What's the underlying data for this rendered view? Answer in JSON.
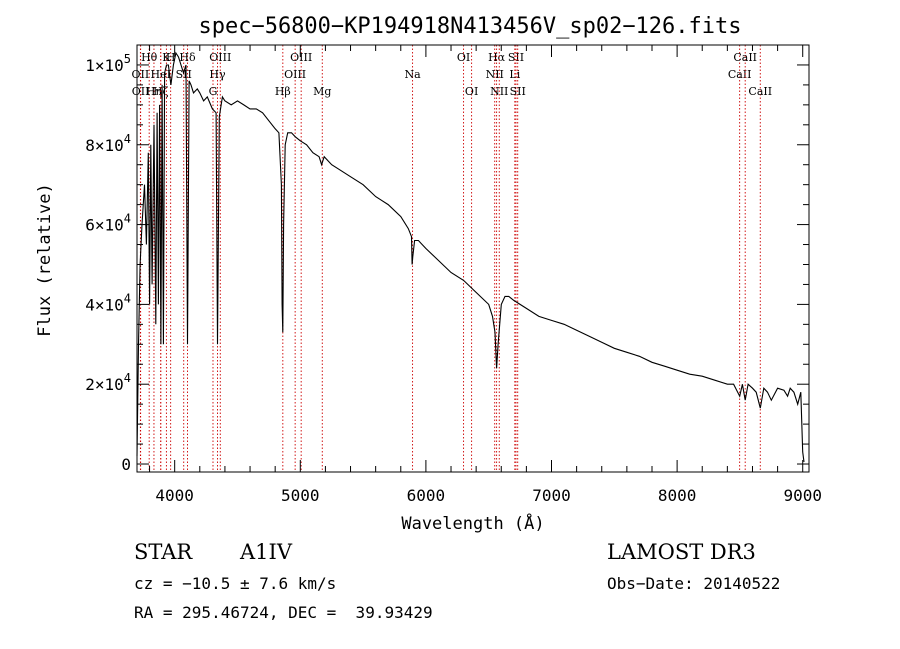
{
  "chart_data": {
    "type": "line",
    "title": "spec−56800−KP194918N413456V_sp02−126.fits",
    "xlabel": "Wavelength (Å)",
    "ylabel": "Flux (relative)",
    "xlim": [
      3700,
      9050
    ],
    "ylim": [
      -2000,
      105000
    ],
    "x_ticks": [
      {
        "value": 4000,
        "label": "4000"
      },
      {
        "value": 5000,
        "label": "5000"
      },
      {
        "value": 6000,
        "label": "6000"
      },
      {
        "value": 7000,
        "label": "7000"
      },
      {
        "value": 8000,
        "label": "8000"
      },
      {
        "value": 9000,
        "label": "9000"
      }
    ],
    "y_ticks": [
      {
        "value": 0,
        "mant": "0",
        "exp": ""
      },
      {
        "value": 20000,
        "mant": "2×10",
        "exp": "4"
      },
      {
        "value": 40000,
        "mant": "4×10",
        "exp": "4"
      },
      {
        "value": 60000,
        "mant": "6×10",
        "exp": "4"
      },
      {
        "value": 80000,
        "mant": "8×10",
        "exp": "4"
      },
      {
        "value": 100000,
        "mant": "1×10",
        "exp": "5"
      }
    ],
    "series": [
      {
        "name": "spectrum",
        "x": [
          3700,
          3712,
          3725,
          3740,
          3760,
          3775,
          3790,
          3800,
          3810,
          3820,
          3835,
          3850,
          3860,
          3870,
          3880,
          3890,
          3900,
          3910,
          3920,
          3935,
          3950,
          3970,
          3990,
          4010,
          4030,
          4050,
          4070,
          4090,
          4102,
          4115,
          4130,
          4150,
          4180,
          4200,
          4230,
          4260,
          4300,
          4330,
          4341,
          4355,
          4380,
          4400,
          4450,
          4500,
          4550,
          4600,
          4650,
          4700,
          4750,
          4800,
          4830,
          4850,
          4855,
          4861,
          4867,
          4880,
          4900,
          4930,
          4960,
          5000,
          5050,
          5100,
          5150,
          5170,
          5180,
          5190,
          5250,
          5300,
          5400,
          5500,
          5600,
          5700,
          5800,
          5860,
          5885,
          5890,
          5896,
          5910,
          5940,
          6000,
          6100,
          6200,
          6300,
          6400,
          6500,
          6530,
          6550,
          6563,
          6575,
          6600,
          6630,
          6660,
          6700,
          6800,
          6900,
          7000,
          7100,
          7200,
          7300,
          7400,
          7500,
          7600,
          7700,
          7800,
          7900,
          8000,
          8100,
          8200,
          8300,
          8400,
          8450,
          8498,
          8520,
          8542,
          8565,
          8600,
          8630,
          8662,
          8690,
          8720,
          8750,
          8800,
          8850,
          8880,
          8900,
          8930,
          8960,
          8985,
          9000,
          9010
        ],
        "y": [
          2000,
          30000,
          50000,
          60000,
          70000,
          55000,
          78000,
          40000,
          80000,
          45000,
          85000,
          35000,
          88000,
          40000,
          90000,
          30000,
          95000,
          30000,
          98000,
          100000,
          100000,
          95000,
          100000,
          103000,
          102000,
          100000,
          98000,
          100000,
          30000,
          96000,
          95000,
          93000,
          94000,
          93000,
          91000,
          92000,
          89000,
          88000,
          30000,
          87000,
          92000,
          91000,
          90000,
          91000,
          90000,
          89000,
          89000,
          88000,
          86000,
          84000,
          83000,
          70000,
          40000,
          33000,
          60000,
          80000,
          83000,
          83000,
          82000,
          81000,
          80000,
          78000,
          77000,
          75000,
          76000,
          77000,
          75000,
          74000,
          72000,
          70000,
          67000,
          65000,
          62000,
          59000,
          57000,
          50000,
          52000,
          56000,
          56000,
          54000,
          51000,
          48000,
          46000,
          43000,
          40000,
          37000,
          33000,
          24000,
          30000,
          40000,
          42000,
          42000,
          41000,
          39000,
          37000,
          36000,
          35000,
          33500,
          32000,
          30500,
          29000,
          28000,
          27000,
          25500,
          24500,
          23500,
          22500,
          22000,
          21000,
          20000,
          20000,
          17000,
          20000,
          16000,
          20000,
          19000,
          18000,
          14000,
          19000,
          18000,
          16000,
          19000,
          18500,
          17000,
          19000,
          18000,
          15000,
          18000,
          3000,
          500
        ]
      }
    ],
    "spectral_lines": [
      {
        "name": "Hδ",
        "x": 4102,
        "row": 0
      },
      {
        "name": "Hγ",
        "x": 4341,
        "row": 1
      },
      {
        "name": "Hβ",
        "x": 4861,
        "row": 2
      },
      {
        "name": "Hα",
        "x": 6563,
        "row": 0
      },
      {
        "name": "Hθ",
        "x": 3797,
        "row": 0
      },
      {
        "name": "Hη",
        "x": 3835,
        "row": 2
      },
      {
        "name": "Hζ",
        "x": 3889,
        "row": 2
      },
      {
        "name": "K",
        "x": 3934,
        "row": 0
      },
      {
        "name": "H",
        "x": 3968,
        "row": 0
      },
      {
        "name": "OII",
        "x": 3727,
        "row": 1
      },
      {
        "name": "OII",
        "x": 3729,
        "row": 2
      },
      {
        "name": "HeI",
        "x": 3889,
        "row": 1
      },
      {
        "name": "SII",
        "x": 4072,
        "row": 1
      },
      {
        "name": "OIII",
        "x": 4363,
        "row": 0
      },
      {
        "name": "G",
        "x": 4305,
        "row": 2
      },
      {
        "name": "OIII",
        "x": 4959,
        "row": 1
      },
      {
        "name": "OIII",
        "x": 5007,
        "row": 0
      },
      {
        "name": "Mg",
        "x": 5175,
        "row": 2
      },
      {
        "name": "Na",
        "x": 5894,
        "row": 1
      },
      {
        "name": "OI",
        "x": 6300,
        "row": 0
      },
      {
        "name": "OI",
        "x": 6364,
        "row": 2
      },
      {
        "name": "NII",
        "x": 6548,
        "row": 1
      },
      {
        "name": "NII",
        "x": 6584,
        "row": 2
      },
      {
        "name": "Li",
        "x": 6708,
        "row": 1
      },
      {
        "name": "SII",
        "x": 6717,
        "row": 0
      },
      {
        "name": "SII",
        "x": 6731,
        "row": 2
      },
      {
        "name": "CaII",
        "x": 8498,
        "row": 1
      },
      {
        "name": "CaII",
        "x": 8542,
        "row": 0
      },
      {
        "name": "CaII",
        "x": 8662,
        "row": 2
      }
    ]
  },
  "info": {
    "object_class": "STAR",
    "subclass": "A1IV",
    "survey": "LAMOST DR3",
    "cz": "cz = −10.5 ± 7.6 km/s",
    "obs_date": "Obs−Date: 20140522",
    "coords": "RA = 295.46724, DEC =  39.93429"
  }
}
